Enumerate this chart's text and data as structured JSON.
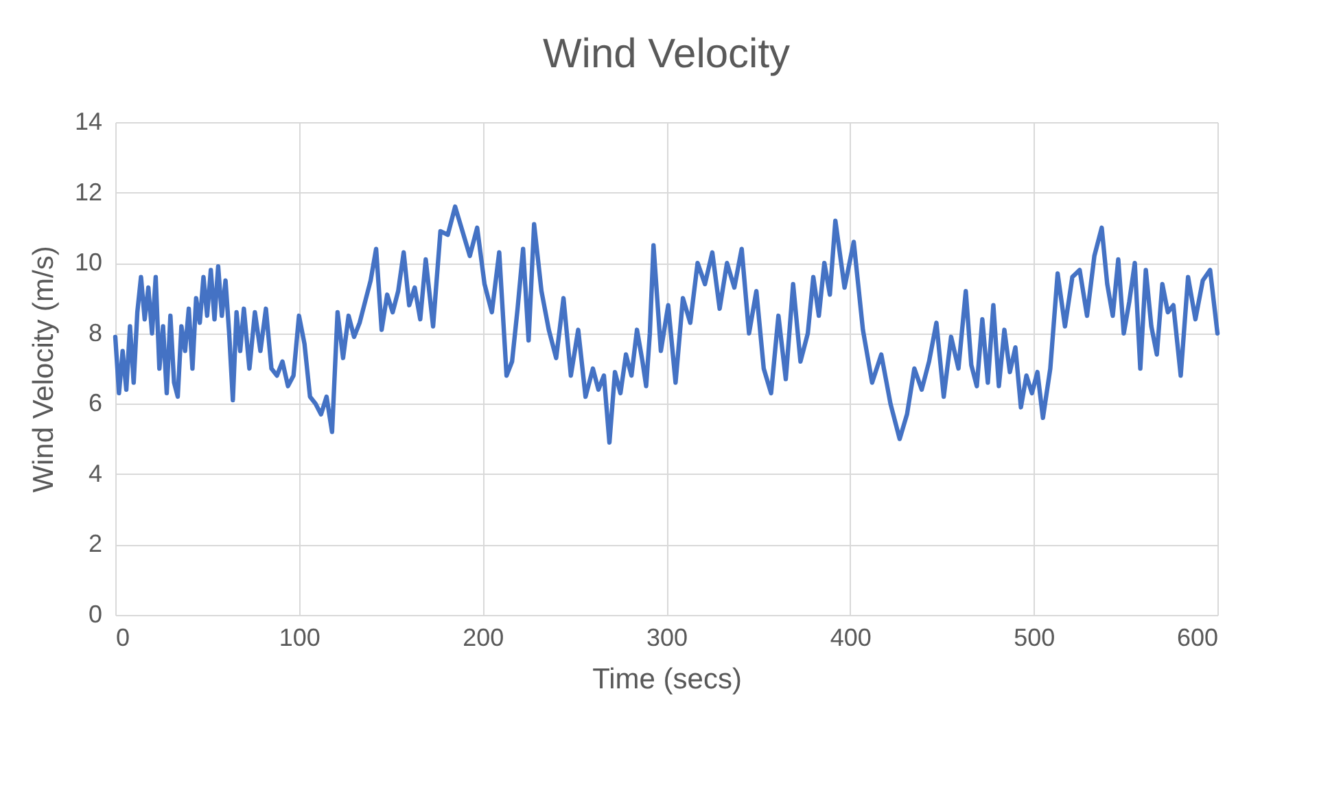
{
  "chart_data": {
    "type": "line",
    "title": "Wind Velocity",
    "xlabel": "Time (secs)",
    "ylabel": "Wind Velocity (m/s)",
    "x": [
      0,
      2,
      4,
      6,
      8,
      10,
      12,
      14,
      16,
      18,
      20,
      22,
      24,
      26,
      28,
      30,
      32,
      34,
      36,
      38,
      40,
      42,
      44,
      46,
      48,
      50,
      52,
      54,
      56,
      58,
      60,
      62,
      64,
      66,
      68,
      70,
      73,
      76,
      79,
      82,
      85,
      88,
      91,
      94,
      97,
      100,
      103,
      106,
      109,
      112,
      115,
      118,
      121,
      124,
      127,
      130,
      133,
      136,
      139,
      142,
      145,
      148,
      151,
      154,
      157,
      160,
      163,
      166,
      169,
      173,
      177,
      181,
      185,
      189,
      193,
      197,
      201,
      205,
      209,
      213,
      216,
      219,
      222,
      225,
      228,
      232,
      236,
      240,
      244,
      248,
      252,
      256,
      260,
      263,
      266,
      269,
      272,
      275,
      278,
      281,
      284,
      287,
      289,
      291,
      293,
      297,
      301,
      305,
      309,
      313,
      317,
      321,
      325,
      329,
      333,
      337,
      341,
      345,
      349,
      353,
      357,
      361,
      365,
      369,
      373,
      377,
      380,
      383,
      386,
      389,
      392,
      397,
      402,
      407,
      412,
      417,
      422,
      427,
      431,
      435,
      439,
      443,
      447,
      451,
      455,
      459,
      463,
      466,
      469,
      472,
      475,
      478,
      481,
      484,
      487,
      490,
      493,
      496,
      499,
      502,
      505,
      509,
      513,
      517,
      521,
      525,
      529,
      533,
      537,
      540,
      543,
      546,
      549,
      552,
      555,
      558,
      561,
      564,
      567,
      570,
      573,
      576,
      580,
      584,
      588,
      592,
      596,
      600
    ],
    "series": [
      {
        "color": "#4472c4",
        "values": [
          7.9,
          6.3,
          7.5,
          6.4,
          8.2,
          6.6,
          8.6,
          9.6,
          8.4,
          9.3,
          8.0,
          9.6,
          7.0,
          8.2,
          6.3,
          8.5,
          6.6,
          6.2,
          8.2,
          7.5,
          8.7,
          7.0,
          9.0,
          8.3,
          9.6,
          8.5,
          9.8,
          8.4,
          9.9,
          8.5,
          9.5,
          8.0,
          6.1,
          8.6,
          7.5,
          8.7,
          7.0,
          8.6,
          7.5,
          8.7,
          7.0,
          6.8,
          7.2,
          6.5,
          6.8,
          8.5,
          7.7,
          6.2,
          6.0,
          5.7,
          6.2,
          5.2,
          8.6,
          7.3,
          8.5,
          7.9,
          8.3,
          8.9,
          9.5,
          10.4,
          8.1,
          9.1,
          8.6,
          9.2,
          10.3,
          8.8,
          9.3,
          8.4,
          10.1,
          8.2,
          10.9,
          10.8,
          11.6,
          10.9,
          10.2,
          11.0,
          9.4,
          8.6,
          10.3,
          6.8,
          7.2,
          8.7,
          10.4,
          7.8,
          11.1,
          9.2,
          8.1,
          7.3,
          9.0,
          6.8,
          8.1,
          6.2,
          7.0,
          6.4,
          6.8,
          4.9,
          6.9,
          6.3,
          7.4,
          6.8,
          8.1,
          7.2,
          6.5,
          8.0,
          10.5,
          7.5,
          8.8,
          6.6,
          9.0,
          8.3,
          10.0,
          9.4,
          10.3,
          8.7,
          10.0,
          9.3,
          10.4,
          8.0,
          9.2,
          7.0,
          6.3,
          8.5,
          6.7,
          9.4,
          7.2,
          8.0,
          9.6,
          8.5,
          10.0,
          9.1,
          11.2,
          9.3,
          10.6,
          8.1,
          6.6,
          7.4,
          6.0,
          5.0,
          5.7,
          7.0,
          6.4,
          7.2,
          8.3,
          6.2,
          7.9,
          7.0,
          9.2,
          7.1,
          6.5,
          8.4,
          6.6,
          8.8,
          6.5,
          8.1,
          6.9,
          7.6,
          5.9,
          6.8,
          6.3,
          6.9,
          5.6,
          7.0,
          9.7,
          8.2,
          9.6,
          9.8,
          8.5,
          10.2,
          11.0,
          9.4,
          8.5,
          10.1,
          8.0,
          8.9,
          10.0,
          7.0,
          9.8,
          8.2,
          7.4,
          9.4,
          8.6,
          8.8,
          6.8,
          9.6,
          8.4,
          9.5,
          9.8,
          8.0
        ]
      }
    ],
    "xlim": [
      0,
      600
    ],
    "xticks": [
      0,
      100,
      200,
      300,
      400,
      500,
      600
    ],
    "ylim": [
      0,
      14
    ],
    "yticks": [
      0,
      2,
      4,
      6,
      8,
      10,
      12,
      14
    ],
    "grid": true,
    "legend": false,
    "marker": "none",
    "line_style": "solid"
  }
}
